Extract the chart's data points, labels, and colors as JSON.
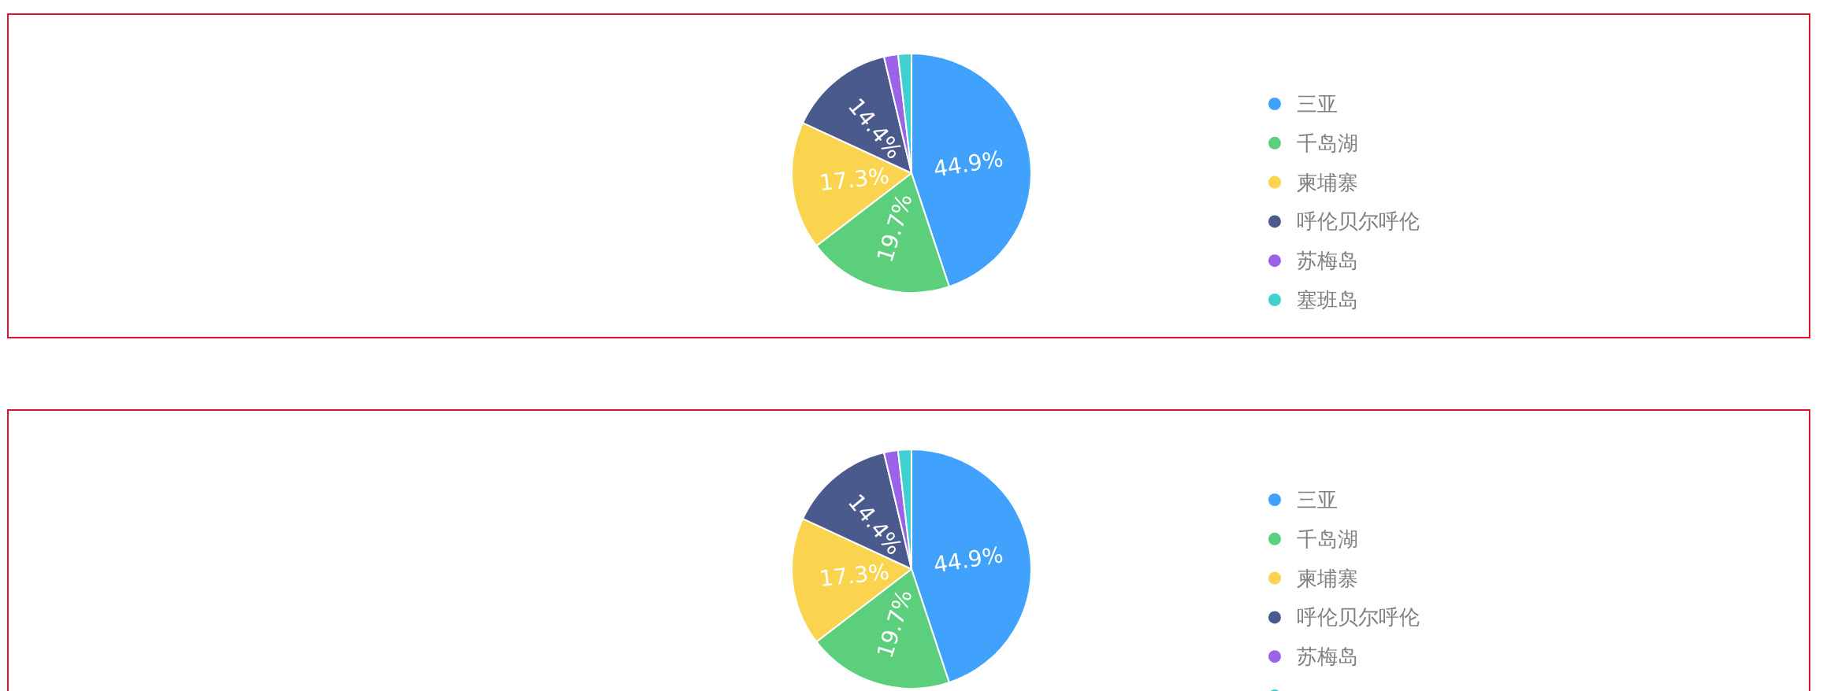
{
  "chart_data": [
    {
      "type": "pie",
      "categories": [
        "三亚",
        "千岛湖",
        "柬埔寨",
        "呼伦贝尔呼伦",
        "苏梅岛",
        "塞班岛"
      ],
      "values": [
        44.9,
        19.7,
        17.3,
        14.4,
        1.9,
        1.8
      ],
      "colors": [
        "#40a2fd",
        "#5ccf7d",
        "#fad34f",
        "#4a5a8c",
        "#9b63e8",
        "#42cfd0"
      ],
      "value_labels": [
        "44.9%",
        "19.7%",
        "17.3%",
        "14.4%",
        null,
        null
      ],
      "legend": "right"
    },
    {
      "type": "pie",
      "categories": [
        "三亚",
        "千岛湖",
        "柬埔寨",
        "呼伦贝尔呼伦",
        "苏梅岛",
        null
      ],
      "values": [
        44.9,
        19.7,
        17.3,
        14.4,
        1.9,
        1.8
      ],
      "colors": [
        "#40a2fd",
        "#5ccf7d",
        "#fad34f",
        "#4a5a8c",
        "#9b63e8",
        "#42cfd0"
      ],
      "value_labels": [
        "44.9%",
        "19.7%",
        "17.3%",
        "14.4%",
        null,
        null
      ],
      "legend": "right"
    }
  ]
}
